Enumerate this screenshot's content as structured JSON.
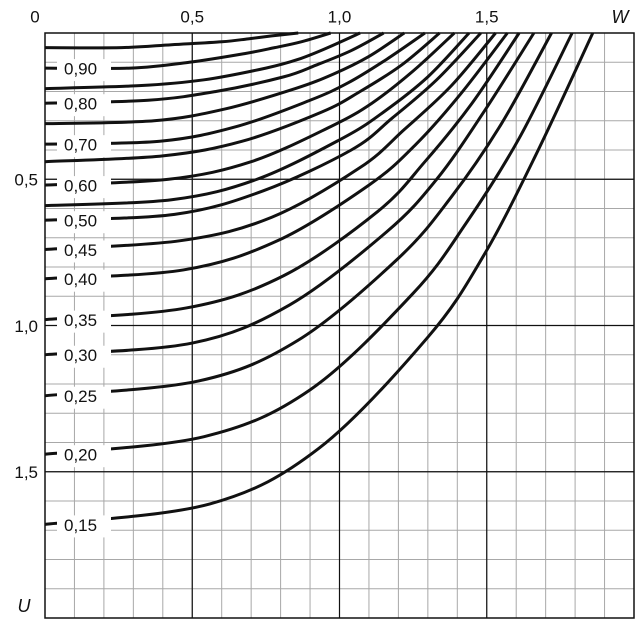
{
  "chart_data": {
    "type": "line",
    "xlabel": "W",
    "ylabel": "U",
    "xlim": [
      0,
      2
    ],
    "ylim": [
      2,
      0
    ],
    "xticks": [
      0,
      {
        "value": 0.5,
        "label": "0,5"
      },
      {
        "value": 1.0,
        "label": "1,0"
      },
      {
        "value": 1.5,
        "label": "1,5"
      }
    ],
    "yticks": [
      {
        "value": 0.5,
        "label": "0,5"
      },
      {
        "value": 1.0,
        "label": "1,0"
      },
      {
        "value": 1.5,
        "label": "1,5"
      }
    ],
    "grid": true,
    "minor_grid_step": 0.1,
    "color": "#111111",
    "series": [
      {
        "x": [
          0,
          0.26,
          0.43,
          0.6,
          0.69,
          0.77,
          0.86
        ],
        "values": [
          0.05,
          0.05,
          0.04,
          0.03,
          0.02,
          0.01,
          0
        ]
      },
      {
        "name": "0,90",
        "x": [
          0,
          0.29,
          0.49,
          0.68,
          0.78,
          0.87,
          0.97
        ],
        "values": [
          0.12,
          0.12,
          0.1,
          0.07,
          0.05,
          0.03,
          0
        ]
      },
      {
        "x": [
          0,
          0.32,
          0.54,
          0.75,
          0.86,
          0.96,
          1.07
        ],
        "values": [
          0.19,
          0.18,
          0.16,
          0.12,
          0.09,
          0.05,
          0
        ]
      },
      {
        "name": "0,80",
        "x": [
          0,
          0.35,
          0.58,
          0.81,
          0.92,
          1.04,
          1.15
        ],
        "values": [
          0.24,
          0.23,
          0.2,
          0.15,
          0.11,
          0.06,
          0
        ]
      },
      {
        "x": [
          0,
          0.37,
          0.61,
          0.85,
          0.98,
          1.1,
          1.22
        ],
        "values": [
          0.31,
          0.3,
          0.26,
          0.19,
          0.14,
          0.08,
          0
        ]
      },
      {
        "name": "0,70",
        "x": [
          0,
          0.39,
          0.65,
          0.9,
          1.03,
          1.16,
          1.29
        ],
        "values": [
          0.38,
          0.37,
          0.32,
          0.23,
          0.17,
          0.09,
          0
        ]
      },
      {
        "x": [
          0,
          0.4,
          0.67,
          0.94,
          1.07,
          1.21,
          1.34
        ],
        "values": [
          0.44,
          0.42,
          0.37,
          0.27,
          0.2,
          0.11,
          0
        ]
      },
      {
        "name": "0,60",
        "x": [
          0,
          0.42,
          0.7,
          0.97,
          1.11,
          1.25,
          1.39
        ],
        "values": [
          0.52,
          0.5,
          0.44,
          0.32,
          0.24,
          0.13,
          0
        ]
      },
      {
        "x": [
          0,
          0.43,
          0.72,
          1.01,
          1.15,
          1.3,
          1.44
        ],
        "values": [
          0.59,
          0.57,
          0.5,
          0.36,
          0.27,
          0.15,
          0
        ]
      },
      {
        "name": "0,50",
        "x": [
          0,
          0.44,
          0.74,
          1.04,
          1.18,
          1.33,
          1.48
        ],
        "values": [
          0.64,
          0.62,
          0.54,
          0.4,
          0.29,
          0.16,
          0
        ]
      },
      {
        "name": "0,45",
        "x": [
          0,
          0.46,
          0.77,
          1.07,
          1.22,
          1.38,
          1.53
        ],
        "values": [
          0.74,
          0.71,
          0.63,
          0.46,
          0.33,
          0.18,
          0
        ]
      },
      {
        "name": "0,40",
        "x": [
          0,
          0.47,
          0.79,
          1.1,
          1.26,
          1.41,
          1.57
        ],
        "values": [
          0.84,
          0.81,
          0.71,
          0.52,
          0.38,
          0.21,
          0
        ]
      },
      {
        "name": "0,35",
        "x": [
          0,
          0.48,
          0.81,
          1.13,
          1.29,
          1.45,
          1.61
        ],
        "values": [
          0.98,
          0.94,
          0.83,
          0.61,
          0.44,
          0.24,
          0
        ]
      },
      {
        "name": "0,30",
        "x": [
          0,
          0.5,
          0.83,
          1.16,
          1.33,
          1.49,
          1.66
        ],
        "values": [
          1.1,
          1.06,
          0.93,
          0.68,
          0.5,
          0.27,
          0
        ]
      },
      {
        "name": "0,25",
        "x": [
          0,
          0.52,
          0.86,
          1.2,
          1.38,
          1.55,
          1.72
        ],
        "values": [
          1.24,
          1.19,
          1.05,
          0.77,
          0.56,
          0.31,
          0
        ]
      },
      {
        "name": "0,20",
        "x": [
          0,
          0.54,
          0.9,
          1.25,
          1.43,
          1.61,
          1.79
        ],
        "values": [
          1.44,
          1.38,
          1.22,
          0.89,
          0.65,
          0.36,
          0
        ]
      },
      {
        "name": "0,15",
        "x": [
          0,
          0.56,
          0.93,
          1.3,
          1.49,
          1.67,
          1.86
        ],
        "values": [
          1.68,
          1.61,
          1.42,
          1.04,
          0.76,
          0.41,
          0
        ]
      }
    ]
  }
}
